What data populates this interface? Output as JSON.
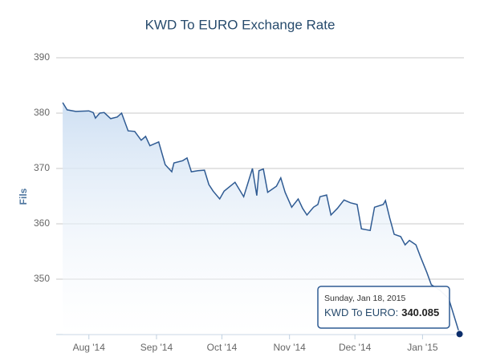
{
  "chart_data": {
    "type": "line",
    "title": "KWD To EURO Exchange Rate",
    "y_label": "Fils",
    "color": "#2f5b93",
    "x": [
      "2014-07-20",
      "2014-07-22",
      "2014-07-26",
      "2014-08-01",
      "2014-08-03",
      "2014-08-04",
      "2014-08-06",
      "2014-08-08",
      "2014-08-11",
      "2014-08-14",
      "2014-08-16",
      "2014-08-19",
      "2014-08-22",
      "2014-08-25",
      "2014-08-27",
      "2014-08-29",
      "2014-09-02",
      "2014-09-05",
      "2014-09-08",
      "2014-09-09",
      "2014-09-13",
      "2014-09-15",
      "2014-09-17",
      "2014-09-20",
      "2014-09-23",
      "2014-09-25",
      "2014-09-27",
      "2014-09-30",
      "2014-10-02",
      "2014-10-07",
      "2014-10-11",
      "2014-10-15",
      "2014-10-17",
      "2014-10-18",
      "2014-10-20",
      "2014-10-22",
      "2014-10-26",
      "2014-10-28",
      "2014-10-30",
      "2014-11-02",
      "2014-11-05",
      "2014-11-07",
      "2014-11-09",
      "2014-11-12",
      "2014-11-14",
      "2014-11-15",
      "2014-11-18",
      "2014-11-20",
      "2014-11-23",
      "2014-11-26",
      "2014-11-29",
      "2014-12-02",
      "2014-12-04",
      "2014-12-08",
      "2014-12-10",
      "2014-12-14",
      "2014-12-15",
      "2014-12-17",
      "2014-12-19",
      "2014-12-22",
      "2014-12-24",
      "2014-12-26",
      "2014-12-29",
      "2014-12-31",
      "2015-01-03",
      "2015-01-05",
      "2015-01-09",
      "2015-01-13",
      "2015-01-18"
    ],
    "values": [
      381.9,
      380.6,
      380.3,
      380.4,
      380.1,
      379.1,
      380.0,
      380.1,
      379.0,
      379.3,
      380.0,
      376.8,
      376.7,
      375.1,
      375.8,
      374.1,
      374.8,
      370.7,
      369.4,
      371.0,
      371.4,
      371.9,
      369.4,
      369.6,
      369.7,
      367.1,
      365.9,
      364.5,
      365.9,
      367.5,
      364.9,
      370.0,
      365.1,
      369.6,
      369.9,
      365.7,
      366.8,
      368.3,
      365.7,
      363.0,
      364.5,
      362.8,
      361.6,
      363.0,
      363.5,
      364.9,
      365.2,
      361.6,
      362.8,
      364.3,
      363.8,
      363.5,
      359.1,
      358.8,
      363.0,
      363.5,
      364.2,
      361.0,
      358.1,
      357.7,
      356.2,
      357.0,
      356.2,
      354.1,
      351.2,
      349.0,
      348.0,
      346.5,
      340.085
    ],
    "xlim": [
      "2014-07-17",
      "2015-01-20"
    ],
    "xticks": [
      {
        "value": "2014-08-01",
        "label": "Aug '14"
      },
      {
        "value": "2014-09-01",
        "label": "Sep '14"
      },
      {
        "value": "2014-10-01",
        "label": "Oct '14"
      },
      {
        "value": "2014-11-01",
        "label": "Nov '14"
      },
      {
        "value": "2014-12-01",
        "label": "Dec '14"
      },
      {
        "value": "2015-01-01",
        "label": "Jan '15"
      }
    ],
    "ylim": [
      340,
      390
    ],
    "yticks": [
      350,
      360,
      370,
      380,
      390
    ],
    "grid": true,
    "tooltip": {
      "date": "Sunday, Jan 18, 2015",
      "label": "KWD To EURO:"
    }
  }
}
